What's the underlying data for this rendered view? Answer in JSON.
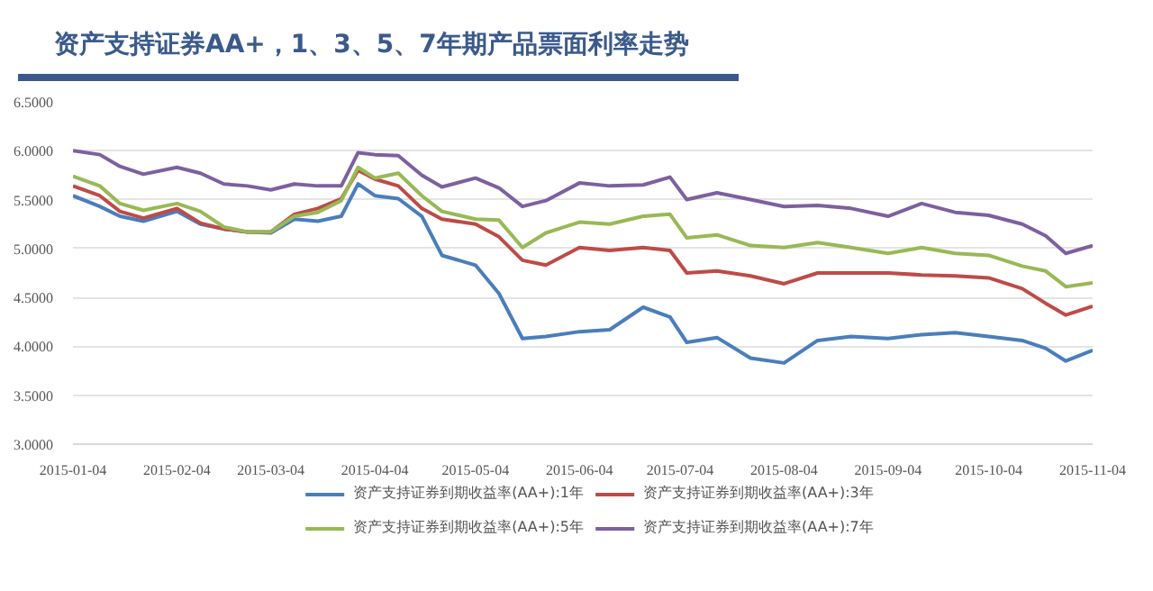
{
  "chart_data": {
    "type": "line",
    "title": "资产支持证券AA+，1、3、5、7年期产品票面利率走势",
    "x": [
      "2015-01-04",
      "2015-01-12",
      "2015-01-18",
      "2015-01-25",
      "2015-02-04",
      "2015-02-11",
      "2015-02-18",
      "2015-02-25",
      "2015-03-04",
      "2015-03-11",
      "2015-03-18",
      "2015-03-25",
      "2015-03-30",
      "2015-04-04",
      "2015-04-11",
      "2015-04-18",
      "2015-04-24",
      "2015-05-04",
      "2015-05-11",
      "2015-05-18",
      "2015-05-25",
      "2015-06-04",
      "2015-06-13",
      "2015-06-23",
      "2015-07-01",
      "2015-07-06",
      "2015-07-15",
      "2015-07-25",
      "2015-08-04",
      "2015-08-14",
      "2015-08-24",
      "2015-09-04",
      "2015-09-14",
      "2015-09-24",
      "2015-10-04",
      "2015-10-14",
      "2015-10-21",
      "2015-10-27",
      "2015-11-04"
    ],
    "series": [
      {
        "name": "资产支持证券到期收益率(AA+):1年",
        "color": "#4a7ebb",
        "values": [
          5.54,
          5.43,
          5.33,
          5.28,
          5.38,
          5.25,
          5.2,
          5.17,
          5.16,
          5.3,
          5.28,
          5.33,
          5.66,
          5.54,
          5.51,
          5.33,
          4.93,
          4.83,
          4.54,
          4.08,
          4.1,
          4.15,
          4.17,
          4.4,
          4.3,
          4.04,
          4.09,
          3.88,
          3.83,
          4.06,
          4.1,
          4.08,
          4.12,
          4.14,
          4.1,
          4.06,
          3.98,
          3.85,
          3.96
        ]
      },
      {
        "name": "资产支持证券到期收益率(AA+):3年",
        "color": "#be4b48",
        "values": [
          5.64,
          5.54,
          5.38,
          5.31,
          5.41,
          5.26,
          5.2,
          5.17,
          5.17,
          5.35,
          5.41,
          5.51,
          5.8,
          5.71,
          5.64,
          5.41,
          5.3,
          5.25,
          5.12,
          4.88,
          4.83,
          5.01,
          4.98,
          5.01,
          4.98,
          4.75,
          4.77,
          4.72,
          4.64,
          4.75,
          4.75,
          4.75,
          4.73,
          4.72,
          4.7,
          4.59,
          4.44,
          4.32,
          4.41
        ]
      },
      {
        "name": "资产支持证券到期收益率(AA+):5年",
        "color": "#98b954",
        "values": [
          5.74,
          5.64,
          5.46,
          5.39,
          5.46,
          5.38,
          5.22,
          5.17,
          5.17,
          5.33,
          5.37,
          5.49,
          5.83,
          5.72,
          5.77,
          5.54,
          5.38,
          5.3,
          5.29,
          5.01,
          5.16,
          5.27,
          5.25,
          5.33,
          5.35,
          5.11,
          5.14,
          5.03,
          5.01,
          5.06,
          5.01,
          4.95,
          5.01,
          4.95,
          4.93,
          4.82,
          4.77,
          4.61,
          4.65
        ]
      },
      {
        "name": "资产支持证券到期收益率(AA+):7年",
        "color": "#7d60a0",
        "values": [
          6.0,
          5.96,
          5.84,
          5.76,
          5.83,
          5.77,
          5.66,
          5.64,
          5.6,
          5.66,
          5.64,
          5.64,
          5.98,
          5.96,
          5.95,
          5.75,
          5.63,
          5.72,
          5.62,
          5.43,
          5.49,
          5.67,
          5.64,
          5.65,
          5.73,
          5.5,
          5.57,
          5.5,
          5.43,
          5.44,
          5.41,
          5.33,
          5.46,
          5.37,
          5.34,
          5.25,
          5.13,
          4.95,
          5.03
        ]
      }
    ],
    "xlim": [
      "2015-01-04",
      "2015-11-04"
    ],
    "xticks": [
      "2015-01-04",
      "2015-02-04",
      "2015-03-04",
      "2015-04-04",
      "2015-05-04",
      "2015-06-04",
      "2015-07-04",
      "2015-08-04",
      "2015-09-04",
      "2015-10-04",
      "2015-11-04"
    ],
    "ylim": [
      3.0,
      6.5
    ],
    "yticks": [
      {
        "value": 3.0,
        "label": "3.0000"
      },
      {
        "value": 3.5,
        "label": "3.5000"
      },
      {
        "value": 4.0,
        "label": "4.0000"
      },
      {
        "value": 4.5,
        "label": "4.5000"
      },
      {
        "value": 5.0,
        "label": "5.0000"
      },
      {
        "value": 5.5,
        "label": "5.5000"
      },
      {
        "value": 6.0,
        "label": "6.0000"
      },
      {
        "value": 6.5,
        "label": "6.5000"
      }
    ],
    "grid": "y",
    "legend": "bottom",
    "marker": "none",
    "line_style": "solid"
  }
}
